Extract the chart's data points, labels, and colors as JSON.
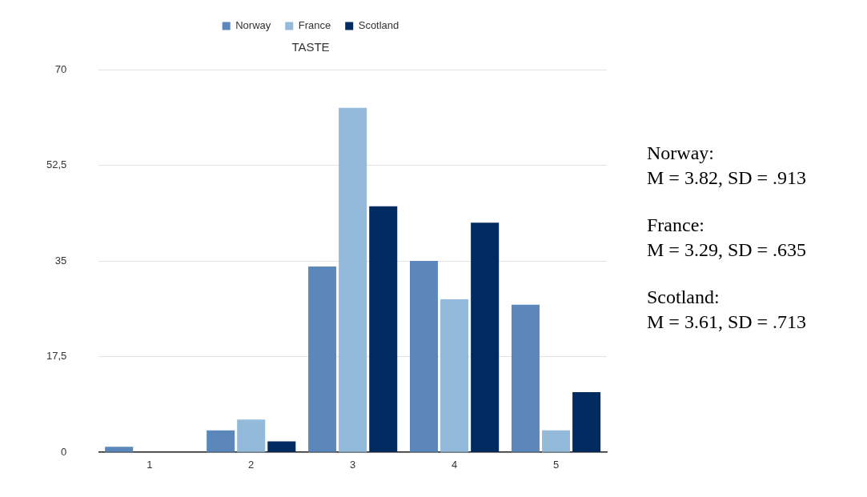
{
  "chart_data": {
    "type": "bar",
    "title": "TASTE",
    "categories": [
      "1",
      "2",
      "3",
      "4",
      "5"
    ],
    "series": [
      {
        "name": "Norway",
        "color": "#5b87bb",
        "values": [
          1,
          4,
          34,
          35,
          27
        ]
      },
      {
        "name": "France",
        "color": "#93b9db",
        "values": [
          0,
          6,
          63,
          28,
          4
        ]
      },
      {
        "name": "Scotland",
        "color": "#002b60",
        "values": [
          0,
          2,
          45,
          42,
          11
        ]
      }
    ],
    "ylim": [
      0,
      70
    ],
    "yticks": [
      0,
      {
        "value": 17.5,
        "label": "17,5"
      },
      35,
      {
        "value": 52.5,
        "label": "52,5"
      },
      70
    ],
    "grid": "y",
    "legend": "top",
    "annotations": [
      "Norway:\nM = 3.82, SD = .913",
      "France:\nM = 3.29, SD = .635",
      "Scotland:\nM = 3.61, SD = .713"
    ]
  }
}
